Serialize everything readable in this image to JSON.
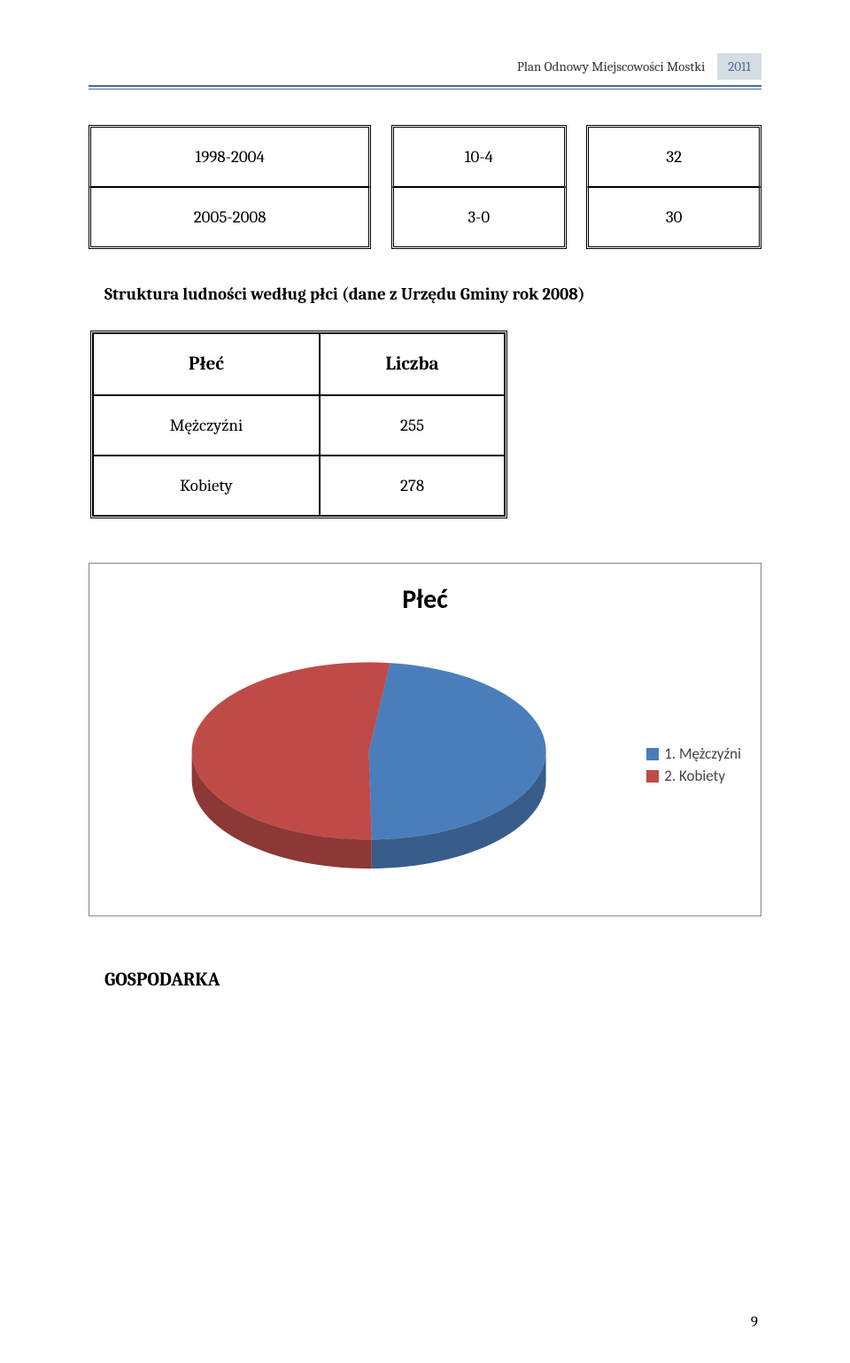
{
  "header": {
    "title": "Plan Odnowy Miejscowości Mostki",
    "year": "2011"
  },
  "table_top": {
    "rows": [
      {
        "c1": "1998-2004",
        "c2": "10-4",
        "c3": "32"
      },
      {
        "c1": "2005-2008",
        "c2": "3-0",
        "c3": "30"
      }
    ]
  },
  "struct_heading": "Struktura ludności według płci (dane z Urzędu Gminy rok 2008)",
  "table_gender": {
    "col1": "Płeć",
    "col2": "Liczba",
    "rows": [
      {
        "label": "Mężczyźni",
        "value": "255"
      },
      {
        "label": "Kobiety",
        "value": "278"
      }
    ]
  },
  "chart": {
    "type": "pie",
    "title": "Płeć",
    "slices": [
      {
        "label": "1. Mężczyźni",
        "value": 255,
        "color": "#4a7ebb",
        "color_side": "#385d8a"
      },
      {
        "label": "2. Kobiety",
        "value": 278,
        "color": "#be4b48",
        "color_side": "#8c3836"
      }
    ],
    "background_color": "#ffffff"
  },
  "bottom_heading": "GOSPODARKA",
  "page_number": "9"
}
